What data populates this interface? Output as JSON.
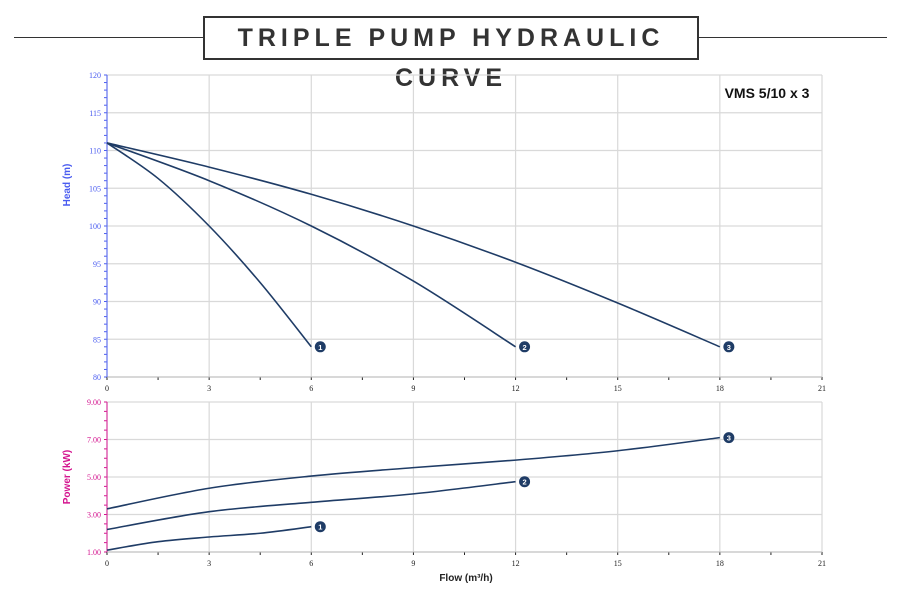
{
  "title": "TRIPLE PUMP HYDRAULIC CURVE",
  "colors": {
    "curve": "#1f3c66",
    "head_axis": "#4a5cf0",
    "power_axis": "#d4148f",
    "grid": "#d9d9d9"
  },
  "chart_data": [
    {
      "type": "line",
      "title": "VMS 5/10 x 3",
      "xlabel": "",
      "ylabel": "Head (m)",
      "xlim": [
        0,
        21
      ],
      "ylim": [
        80,
        120
      ],
      "xticks": [
        0,
        3,
        6,
        9,
        12,
        15,
        18,
        21
      ],
      "yticks": [
        80,
        85,
        90,
        95,
        100,
        105,
        110,
        115,
        120
      ],
      "grid": true,
      "series": [
        {
          "name": "1",
          "x": [
            0,
            1.5,
            3,
            4.5,
            6
          ],
          "y": [
            111,
            106.3,
            100,
            92.5,
            84
          ]
        },
        {
          "name": "2",
          "x": [
            0,
            3,
            6,
            9,
            12
          ],
          "y": [
            111,
            106,
            100,
            92.7,
            84
          ]
        },
        {
          "name": "3",
          "x": [
            0,
            3,
            6,
            9,
            12,
            15,
            18
          ],
          "y": [
            111,
            107.8,
            104.2,
            100,
            95.2,
            89.8,
            84
          ]
        }
      ]
    },
    {
      "type": "line",
      "xlabel": "Flow (m³/h)",
      "ylabel": "Power (kW)",
      "xlim": [
        0,
        21
      ],
      "ylim": [
        1,
        9
      ],
      "xticks": [
        0,
        3,
        6,
        9,
        12,
        15,
        18,
        21
      ],
      "yticks": [
        "1.00",
        "3.00",
        "5.00",
        "7.00",
        "9.00"
      ],
      "grid": true,
      "series": [
        {
          "name": "1",
          "x": [
            0,
            1.5,
            3,
            4.5,
            6
          ],
          "y": [
            1.1,
            1.55,
            1.8,
            2.0,
            2.35
          ]
        },
        {
          "name": "2",
          "x": [
            0,
            3,
            6,
            9,
            12
          ],
          "y": [
            2.2,
            3.15,
            3.65,
            4.1,
            4.75
          ]
        },
        {
          "name": "3",
          "x": [
            0,
            3,
            6,
            9,
            12,
            15,
            18
          ],
          "y": [
            3.3,
            4.4,
            5.05,
            5.5,
            5.9,
            6.4,
            7.1
          ]
        }
      ]
    }
  ]
}
